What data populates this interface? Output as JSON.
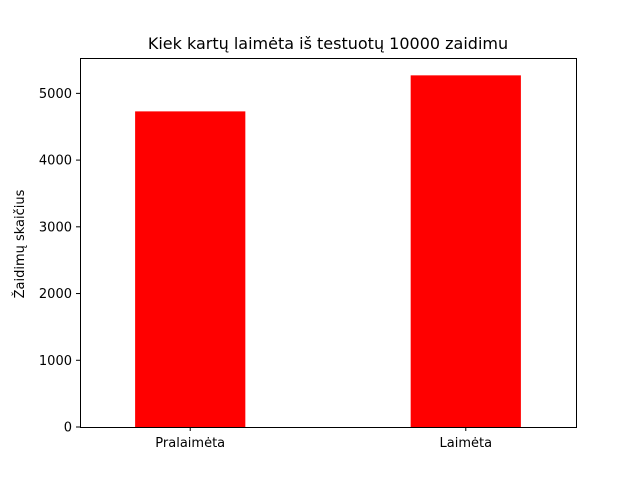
{
  "chart_data": {
    "type": "bar",
    "title": "Kiek kartų laimėta iš testuotų 10000 zaidimu",
    "xlabel": "",
    "ylabel": "Žaidimų skaičius",
    "categories": [
      "Pralaimėta",
      "Laimėta"
    ],
    "values": [
      4730,
      5270
    ],
    "ylim": [
      0,
      5530
    ],
    "yticks": [
      0,
      1000,
      2000,
      3000,
      4000,
      5000
    ],
    "bar_color": "#ff0000",
    "grid": false,
    "legend": "none"
  }
}
